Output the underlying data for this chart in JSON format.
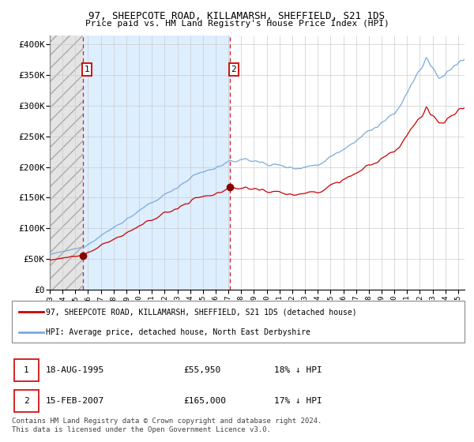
{
  "title1": "97, SHEEPCOTE ROAD, KILLAMARSH, SHEFFIELD, S21 1DS",
  "title2": "Price paid vs. HM Land Registry's House Price Index (HPI)",
  "ylabel_ticks": [
    "£0",
    "£50K",
    "£100K",
    "£150K",
    "£200K",
    "£250K",
    "£300K",
    "£350K",
    "£400K"
  ],
  "ytick_values": [
    0,
    50000,
    100000,
    150000,
    200000,
    250000,
    300000,
    350000,
    400000
  ],
  "ylim": [
    0,
    415000
  ],
  "sale1_price": 55950,
  "sale1_date": "18-AUG-1995",
  "sale1_pct": "18% ↓ HPI",
  "sale2_price": 165000,
  "sale2_date": "15-FEB-2007",
  "sale2_pct": "17% ↓ HPI",
  "legend_red": "97, SHEEPCOTE ROAD, KILLAMARSH, SHEFFIELD, S21 1DS (detached house)",
  "legend_blue": "HPI: Average price, detached house, North East Derbyshire",
  "footer": "Contains HM Land Registry data © Crown copyright and database right 2024.\nThis data is licensed under the Open Government Licence v3.0.",
  "hpi_color": "#7aaadd",
  "price_color": "#cc0000",
  "bg_span_color": "#ddeeff",
  "grid_color": "#cccccc",
  "hatch_color": "#cccccc",
  "start_year": 1993.0,
  "end_year": 2025.5,
  "sale1_year": 1995.63,
  "sale2_year": 2007.12
}
